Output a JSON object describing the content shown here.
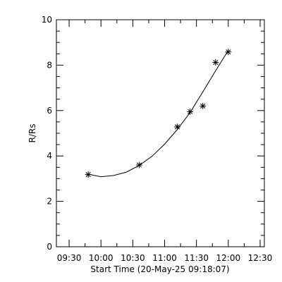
{
  "chart_data": {
    "type": "scatter",
    "xlabel": "Start Time (20-May-25 09:18:07)",
    "ylabel": "R/Rs",
    "xlim": [
      "09:18",
      "12:34"
    ],
    "ylim": [
      0,
      10
    ],
    "x_ticks": [
      "09:30",
      "10:00",
      "10:30",
      "11:00",
      "11:30",
      "12:00",
      "12:30"
    ],
    "y_ticks": [
      "0",
      "2",
      "4",
      "6",
      "8",
      "10"
    ],
    "x_minor_ticks_per_major": 2,
    "y_minor_ticks_per_major": 4,
    "grid": false,
    "marker": "asterisk",
    "series": [
      {
        "points": [
          {
            "x": "09:48",
            "y": 3.18
          },
          {
            "x": "10:36",
            "y": 3.6
          },
          {
            "x": "11:12",
            "y": 5.28
          },
          {
            "x": "11:24",
            "y": 5.95
          },
          {
            "x": "11:36",
            "y": 6.2
          },
          {
            "x": "11:48",
            "y": 8.12
          },
          {
            "x": "12:00",
            "y": 8.58
          }
        ]
      }
    ],
    "fit_curve": {
      "type": "quadratic",
      "points": [
        {
          "x": "09:48",
          "y": 3.2
        },
        {
          "x": "10:00",
          "y": 3.08
        },
        {
          "x": "10:12",
          "y": 3.14
        },
        {
          "x": "10:24",
          "y": 3.29
        },
        {
          "x": "10:36",
          "y": 3.58
        },
        {
          "x": "10:48",
          "y": 3.98
        },
        {
          "x": "11:00",
          "y": 4.52
        },
        {
          "x": "11:12",
          "y": 5.17
        },
        {
          "x": "11:24",
          "y": 5.91
        },
        {
          "x": "11:36",
          "y": 6.82
        },
        {
          "x": "11:48",
          "y": 7.75
        },
        {
          "x": "12:00",
          "y": 8.65
        }
      ]
    },
    "colors": {
      "axes": "#000000",
      "marks": "#000000",
      "background": "#ffffff"
    }
  }
}
